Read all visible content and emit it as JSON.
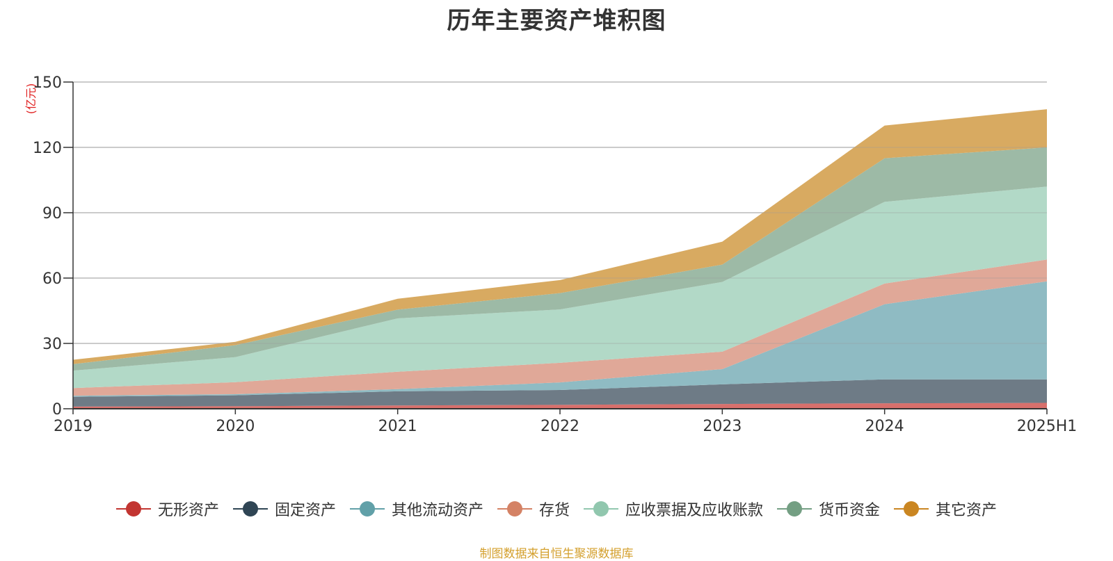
{
  "title": "历年主要资产堆积图",
  "source_note": "制图数据来自恒生聚源数据库",
  "chart_data": {
    "type": "area",
    "stacked": true,
    "title": "历年主要资产堆积图",
    "y_unit": "(亿元)",
    "categories": [
      "2019",
      "2020",
      "2021",
      "2022",
      "2023",
      "2024",
      "2025H1"
    ],
    "ylim": [
      0,
      150
    ],
    "yticks": [
      0,
      30,
      60,
      90,
      120,
      150
    ],
    "grid": true,
    "legend_position": "bottom",
    "series": [
      {
        "name": "无形资产",
        "color": "#c23531",
        "fill": "#d8706c",
        "values": [
          1.0,
          1.2,
          1.5,
          1.8,
          2.2,
          2.5,
          2.7
        ]
      },
      {
        "name": "固定资产",
        "color": "#2f4554",
        "fill": "#6e7b86",
        "values": [
          4.5,
          5.0,
          6.5,
          6.8,
          9.0,
          11.0,
          10.8
        ]
      },
      {
        "name": "其他流动资产",
        "color": "#61a0a8",
        "fill": "#8fbbc3",
        "values": [
          0.5,
          0.5,
          1.0,
          3.5,
          7.0,
          34.5,
          45.0
        ]
      },
      {
        "name": "存货",
        "color": "#d48265",
        "fill": "#e0a898",
        "values": [
          3.5,
          5.5,
          8.0,
          9.0,
          8.0,
          9.5,
          10.0
        ]
      },
      {
        "name": "应收票据及应收账款",
        "color": "#91c7ae",
        "fill": "#b2d9c7",
        "values": [
          8.0,
          11.5,
          24.5,
          24.5,
          32.0,
          37.5,
          33.5
        ]
      },
      {
        "name": "货币资金",
        "color": "#749f83",
        "fill": "#9dbaa6",
        "values": [
          3.0,
          5.5,
          4.0,
          7.5,
          8.0,
          20.0,
          18.0
        ]
      },
      {
        "name": "其它资产",
        "color": "#ca8622",
        "fill": "#d8aa61",
        "values": [
          2.0,
          1.5,
          5.0,
          6.0,
          10.5,
          15.0,
          17.5
        ]
      }
    ]
  }
}
